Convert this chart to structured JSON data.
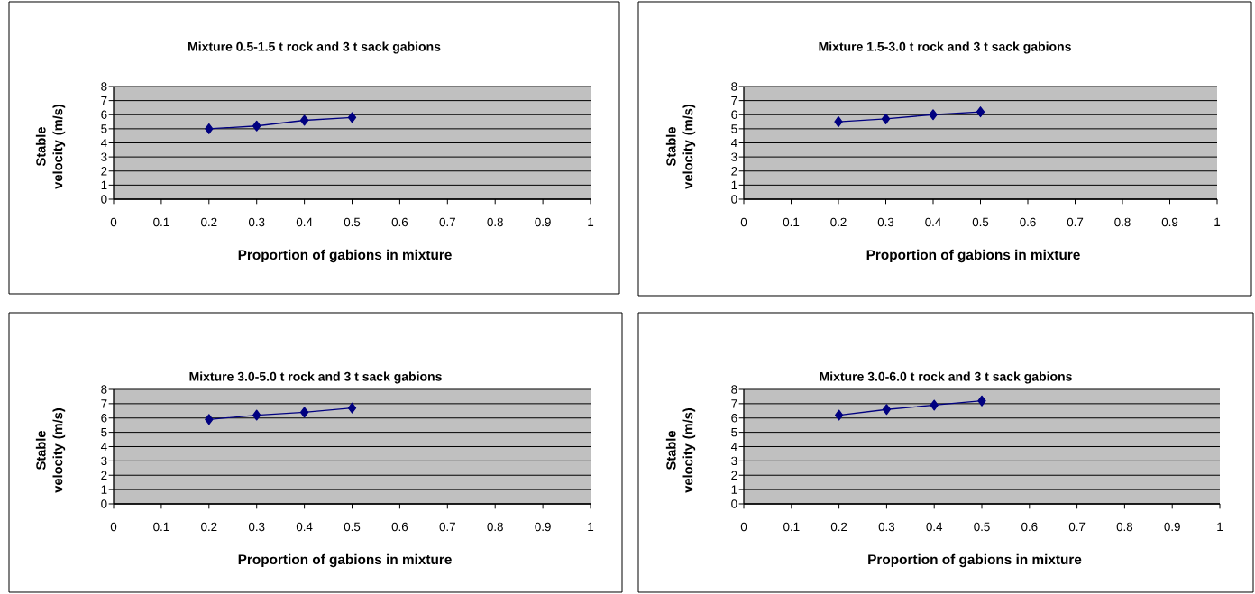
{
  "chart_data": [
    {
      "type": "line",
      "title": "Mixture 0.5-1.5 t rock and 3 t sack gabions",
      "xlabel": "Proportion of gabions in mixture",
      "ylabel": "Stable velocity (m/s)",
      "x": [
        0.2,
        0.3,
        0.4,
        0.5
      ],
      "values": [
        5.0,
        5.2,
        5.6,
        5.8
      ],
      "color": "#000080",
      "marker": "diamond",
      "grid": "y",
      "xlim": [
        0,
        1
      ],
      "xticks": [
        0,
        0.1,
        0.2,
        0.3,
        0.4,
        0.5,
        0.6,
        0.7,
        0.8,
        0.9,
        1
      ],
      "ylim": [
        0,
        8
      ],
      "yticks": [
        0,
        1,
        2,
        3,
        4,
        5,
        6,
        7,
        8
      ]
    },
    {
      "type": "line",
      "title": "Mixture 1.5-3.0 t rock and 3 t sack gabions",
      "xlabel": "Proportion of gabions in mixture",
      "ylabel": "Stable velocity (m/s)",
      "x": [
        0.2,
        0.3,
        0.4,
        0.5
      ],
      "values": [
        5.5,
        5.7,
        6.0,
        6.2
      ],
      "color": "#000080",
      "marker": "diamond",
      "grid": "y",
      "xlim": [
        0,
        1
      ],
      "xticks": [
        0,
        0.1,
        0.2,
        0.3,
        0.4,
        0.5,
        0.6,
        0.7,
        0.8,
        0.9,
        1
      ],
      "ylim": [
        0,
        8
      ],
      "yticks": [
        0,
        1,
        2,
        3,
        4,
        5,
        6,
        7,
        8
      ]
    },
    {
      "type": "line",
      "title": "Mixture 3.0-5.0 t rock and 3 t sack gabions",
      "xlabel": "Proportion of gabions in mixture",
      "ylabel": "Stable velocity (m/s)",
      "x": [
        0.2,
        0.3,
        0.4,
        0.5
      ],
      "values": [
        5.9,
        6.2,
        6.4,
        6.7
      ],
      "color": "#000080",
      "marker": "diamond",
      "grid": "y",
      "xlim": [
        0,
        1
      ],
      "xticks": [
        0,
        0.1,
        0.2,
        0.3,
        0.4,
        0.5,
        0.6,
        0.7,
        0.8,
        0.9,
        1
      ],
      "ylim": [
        0,
        8
      ],
      "yticks": [
        0,
        1,
        2,
        3,
        4,
        5,
        6,
        7,
        8
      ]
    },
    {
      "type": "line",
      "title": "Mixture 3.0-6.0 t rock and 3 t sack gabions",
      "xlabel": "Proportion of gabions in mixture",
      "ylabel": "Stable velocity (m/s)",
      "x": [
        0.2,
        0.3,
        0.4,
        0.5
      ],
      "values": [
        6.2,
        6.6,
        6.9,
        7.2
      ],
      "color": "#000080",
      "marker": "diamond",
      "grid": "y",
      "xlim": [
        0,
        1
      ],
      "xticks": [
        0,
        0.1,
        0.2,
        0.3,
        0.4,
        0.5,
        0.6,
        0.7,
        0.8,
        0.9,
        1
      ],
      "ylim": [
        0,
        8
      ],
      "yticks": [
        0,
        1,
        2,
        3,
        4,
        5,
        6,
        7,
        8
      ]
    }
  ]
}
